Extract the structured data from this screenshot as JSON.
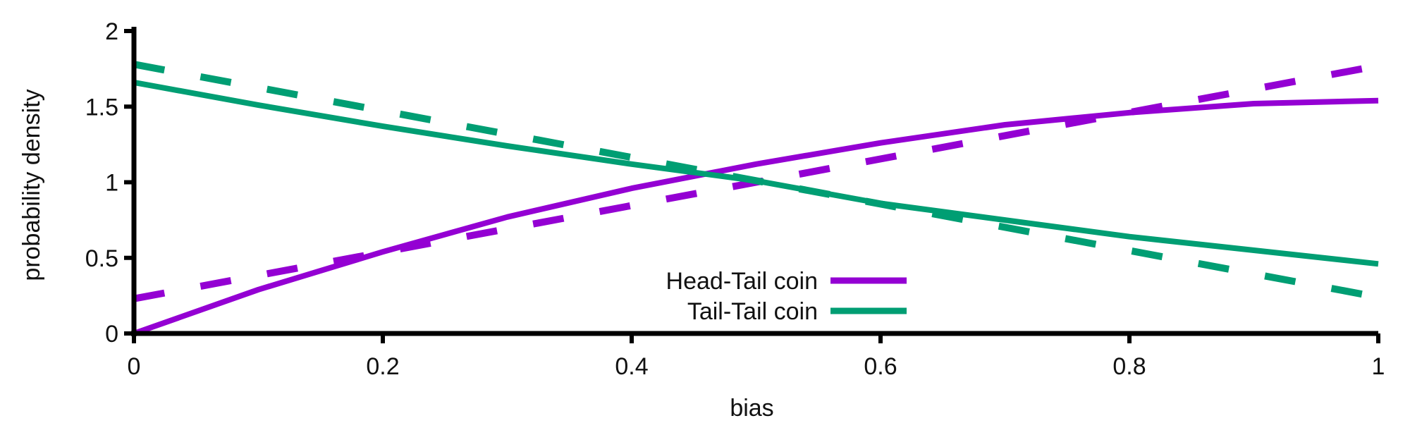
{
  "chart_data": {
    "type": "line",
    "xlabel": "bias",
    "ylabel": "probability density",
    "xlim": [
      0,
      1
    ],
    "ylim": [
      0,
      2
    ],
    "x_ticks": [
      0,
      0.2,
      0.4,
      0.6,
      0.8,
      1
    ],
    "x_tick_labels": [
      "0",
      "0.2",
      "0.4",
      "0.6",
      "0.8",
      "1"
    ],
    "y_ticks": [
      0,
      0.5,
      1,
      1.5,
      2
    ],
    "y_tick_labels": [
      "0",
      "0.5",
      "1",
      "1.5",
      "2"
    ],
    "grid": false,
    "legend_position": "bottom-center",
    "series": [
      {
        "name": "Head-Tail coin",
        "color": "#9400d3",
        "style": "solid",
        "x": [
          0,
          0.1,
          0.2,
          0.3,
          0.4,
          0.5,
          0.6,
          0.7,
          0.8,
          0.9,
          1.0
        ],
        "y": [
          0.0,
          0.29,
          0.54,
          0.77,
          0.96,
          1.12,
          1.26,
          1.38,
          1.46,
          1.52,
          1.54
        ]
      },
      {
        "name": "",
        "color": "#9400d3",
        "style": "dashed",
        "x": [
          0,
          1
        ],
        "y": [
          0.23,
          1.77
        ]
      },
      {
        "name": "Tail-Tail coin",
        "color": "#009e73",
        "style": "solid",
        "x": [
          0,
          0.1,
          0.2,
          0.3,
          0.4,
          0.5,
          0.6,
          0.7,
          0.8,
          0.9,
          1.0
        ],
        "y": [
          1.66,
          1.51,
          1.37,
          1.24,
          1.12,
          1.01,
          0.86,
          0.75,
          0.64,
          0.55,
          0.46
        ]
      },
      {
        "name": "",
        "color": "#009e73",
        "style": "dashed",
        "x": [
          0,
          1
        ],
        "y": [
          1.78,
          0.24
        ]
      }
    ]
  }
}
